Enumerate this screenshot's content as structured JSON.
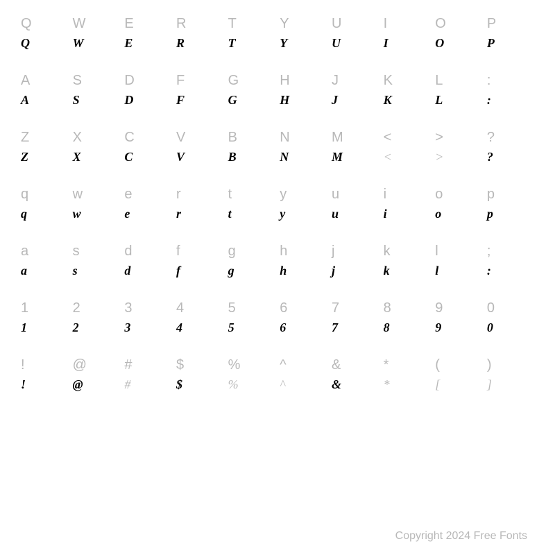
{
  "rows": [
    {
      "type": "label",
      "cells": [
        "Q",
        "W",
        "E",
        "R",
        "T",
        "Y",
        "U",
        "I",
        "O",
        "P"
      ]
    },
    {
      "type": "glyph",
      "cells": [
        "Q",
        "W",
        "E",
        "R",
        "T",
        "Y",
        "U",
        "I",
        "O",
        "P"
      ],
      "light": [
        false,
        false,
        false,
        false,
        false,
        false,
        false,
        false,
        false,
        false
      ]
    },
    {
      "type": "label",
      "cells": [
        "A",
        "S",
        "D",
        "F",
        "G",
        "H",
        "J",
        "K",
        "L",
        ":"
      ]
    },
    {
      "type": "glyph",
      "cells": [
        "A",
        "S",
        "D",
        "F",
        "G",
        "H",
        "J",
        "K",
        "L",
        ":"
      ],
      "light": [
        false,
        false,
        false,
        false,
        false,
        false,
        false,
        false,
        false,
        false
      ]
    },
    {
      "type": "label",
      "cells": [
        "Z",
        "X",
        "C",
        "V",
        "B",
        "N",
        "M",
        "<",
        ">",
        "?"
      ]
    },
    {
      "type": "glyph",
      "cells": [
        "Z",
        "X",
        "C",
        "V",
        "B",
        "N",
        "M",
        "<",
        ">",
        "?"
      ],
      "light": [
        false,
        false,
        false,
        false,
        false,
        false,
        false,
        true,
        true,
        false
      ]
    },
    {
      "type": "label",
      "cells": [
        "q",
        "w",
        "e",
        "r",
        "t",
        "y",
        "u",
        "i",
        "o",
        "p"
      ]
    },
    {
      "type": "glyph",
      "cells": [
        "q",
        "w",
        "e",
        "r",
        "t",
        "y",
        "u",
        "i",
        "o",
        "p"
      ],
      "light": [
        false,
        false,
        false,
        false,
        false,
        false,
        false,
        false,
        false,
        false
      ]
    },
    {
      "type": "label",
      "cells": [
        "a",
        "s",
        "d",
        "f",
        "g",
        "h",
        "j",
        "k",
        "l",
        ";"
      ]
    },
    {
      "type": "glyph",
      "cells": [
        "a",
        "s",
        "d",
        "f",
        "g",
        "h",
        "j",
        "k",
        "l",
        ":"
      ],
      "light": [
        false,
        false,
        false,
        false,
        false,
        false,
        false,
        false,
        false,
        false
      ]
    },
    {
      "type": "label",
      "cells": [
        "1",
        "2",
        "3",
        "4",
        "5",
        "6",
        "7",
        "8",
        "9",
        "0"
      ]
    },
    {
      "type": "glyph",
      "cells": [
        "1",
        "2",
        "3",
        "4",
        "5",
        "6",
        "7",
        "8",
        "9",
        "0"
      ],
      "light": [
        false,
        false,
        false,
        false,
        false,
        false,
        false,
        false,
        false,
        false
      ]
    },
    {
      "type": "label",
      "cells": [
        "!",
        "@",
        "#",
        "$",
        "%",
        "^",
        "&",
        "*",
        "(",
        ")"
      ]
    },
    {
      "type": "glyph",
      "cells": [
        "!",
        "@",
        "#",
        "$",
        "%",
        "^",
        "&",
        "*",
        "[",
        "]"
      ],
      "light": [
        false,
        false,
        true,
        false,
        true,
        true,
        false,
        true,
        true,
        true
      ]
    }
  ],
  "copyright": "Copyright 2024 Free Fonts",
  "colors": {
    "background": "#ffffff",
    "label": "#b8b8b8",
    "glyph": "#000000"
  },
  "typography": {
    "label_fontsize": 20,
    "glyph_fontsize": 18,
    "copyright_fontsize": 16
  }
}
